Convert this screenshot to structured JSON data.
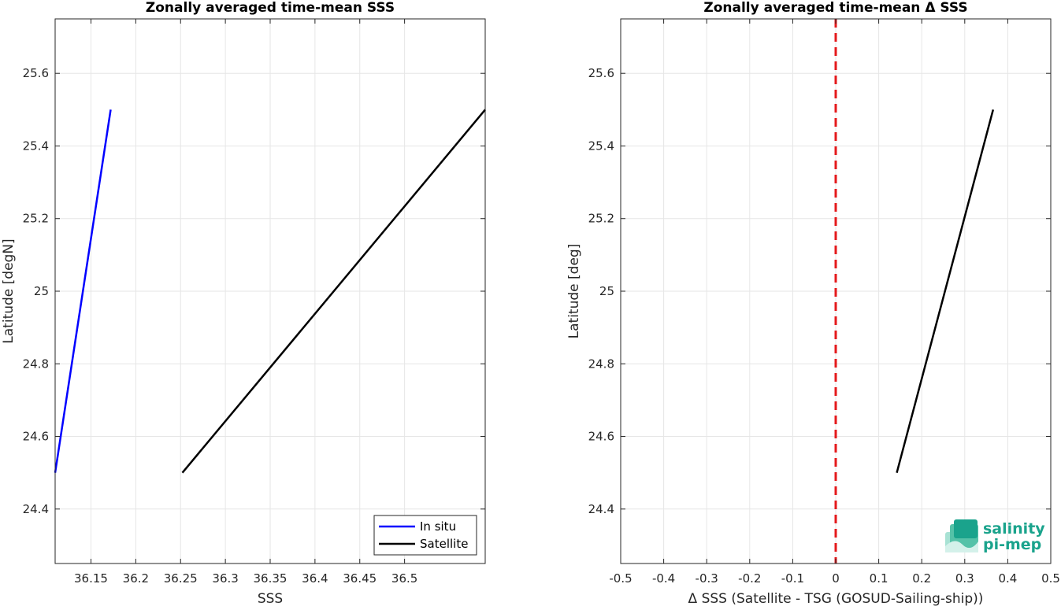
{
  "chart_data": [
    {
      "type": "line",
      "title": "Zonally averaged time-mean SSS",
      "xlabel": "SSS",
      "ylabel": "Latitude [degN]",
      "xlim": [
        36.11,
        36.59
      ],
      "ylim": [
        24.25,
        25.75
      ],
      "xticks": [
        36.15,
        36.2,
        36.25,
        36.3,
        36.35,
        36.4,
        36.45,
        36.5
      ],
      "xticklabels": [
        "36.15",
        "36.2",
        "36.25",
        "36.3",
        "36.35",
        "36.4",
        "36.45",
        "36.5"
      ],
      "yticks": [
        24.4,
        24.6,
        24.8,
        25,
        25.2,
        25.4,
        25.6
      ],
      "yticklabels": [
        "24.4",
        "24.6",
        "24.8",
        "25",
        "25.2",
        "25.4",
        "25.6"
      ],
      "grid": true,
      "legend": "bottom-right",
      "series": [
        {
          "name": "In situ",
          "color": "#0000ff",
          "x": [
            36.11,
            36.172
          ],
          "y": [
            24.5,
            25.5
          ]
        },
        {
          "name": "Satellite",
          "color": "#000000",
          "x": [
            36.252,
            36.59
          ],
          "y": [
            24.5,
            25.5
          ]
        }
      ]
    },
    {
      "type": "line",
      "title": "Zonally averaged time-mean Δ SSS",
      "xlabel": "Δ SSS (Satellite - TSG (GOSUD-Sailing-ship))",
      "ylabel": "Latitude [deg]",
      "xlim": [
        -0.5,
        0.5
      ],
      "ylim": [
        24.25,
        25.75
      ],
      "xticks": [
        -0.5,
        -0.4,
        -0.3,
        -0.2,
        -0.1,
        0,
        0.1,
        0.2,
        0.3,
        0.4,
        0.5
      ],
      "xticklabels": [
        "-0.5",
        "-0.4",
        "-0.3",
        "-0.2",
        "-0.1",
        "0",
        "0.1",
        "0.2",
        "0.3",
        "0.4",
        "0.5"
      ],
      "yticks": [
        24.4,
        24.6,
        24.8,
        25,
        25.2,
        25.4,
        25.6
      ],
      "yticklabels": [
        "24.4",
        "24.6",
        "24.8",
        "25",
        "25.2",
        "25.4",
        "25.6"
      ],
      "grid": true,
      "reference_line": {
        "x": 0,
        "color": "#e41a1c",
        "style": "dashed"
      },
      "series": [
        {
          "color": "#000000",
          "x": [
            0.142,
            0.366
          ],
          "y": [
            24.5,
            25.5
          ]
        }
      ]
    }
  ],
  "logo": {
    "line1": "salinity",
    "line2": "pi-mep",
    "color": "#1aa38c"
  }
}
